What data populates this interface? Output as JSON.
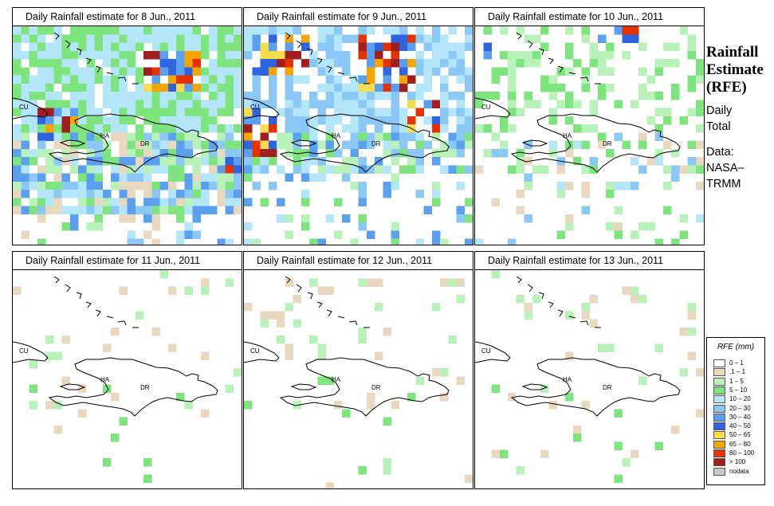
{
  "panels": [
    {
      "id": "p1",
      "title": "Daily Rainfall estimate for  8 Jun., 2011",
      "col": 0,
      "row": 0,
      "seed": 11,
      "coverage": 0.88,
      "base": [
        [
          3,
          4
        ],
        [
          1,
          6
        ]
      ],
      "hot": [
        [
          155,
          30,
          75,
          45,
          1.0
        ],
        [
          30,
          100,
          45,
          40,
          0.8
        ],
        [
          265,
          155,
          25,
          25,
          1.0
        ]
      ],
      "south": 230
    },
    {
      "id": "p2",
      "title": "Daily Rainfall estimate for  9 Jun., 2011",
      "col": 1,
      "row": 0,
      "seed": 22,
      "coverage": 0.72,
      "base": [
        [
          4,
          5
        ],
        [
          2,
          6
        ]
      ],
      "hot": [
        [
          10,
          10,
          70,
          50,
          1.0
        ],
        [
          140,
          10,
          70,
          70,
          1.0
        ],
        [
          0,
          100,
          40,
          60,
          0.9
        ],
        [
          200,
          90,
          45,
          40,
          0.9
        ]
      ],
      "south": 175
    },
    {
      "id": "p3",
      "title": "Daily Rainfall estimate for  10 Jun., 2011",
      "col": 2,
      "row": 0,
      "seed": 33,
      "coverage": 0.35,
      "base": [
        [
          2,
          3
        ],
        [
          1,
          5
        ]
      ],
      "hot": [
        [
          140,
          0,
          70,
          18,
          1.0
        ],
        [
          0,
          10,
          30,
          30,
          0.7
        ]
      ],
      "south": 200
    },
    {
      "id": "p4",
      "title": "Daily Rainfall estimate for  11 Jun., 2011",
      "col": 0,
      "row": 1,
      "seed": 44,
      "coverage": 0.06,
      "base": [
        [
          1,
          2
        ],
        [
          1,
          3
        ]
      ],
      "hot": [],
      "south": 200
    },
    {
      "id": "p5",
      "title": "Daily Rainfall estimate for  12 Jun., 2011",
      "col": 1,
      "row": 1,
      "seed": 55,
      "coverage": 0.07,
      "base": [
        [
          1,
          2
        ],
        [
          1,
          3
        ]
      ],
      "hot": [],
      "south": 200
    },
    {
      "id": "p6",
      "title": "Daily Rainfall estimate for  13 Jun., 2011",
      "col": 2,
      "row": 1,
      "seed": 66,
      "coverage": 0.06,
      "base": [
        [
          1,
          2
        ],
        [
          1,
          3
        ]
      ],
      "hot": [],
      "south": 250
    }
  ],
  "country_labels": [
    "CU",
    "HA",
    "DR"
  ],
  "sidebar": {
    "title_lines": [
      "Rainfall",
      "Estimate",
      "(RFE)"
    ],
    "daily_lines": [
      "Daily",
      "Total"
    ],
    "data_lines": [
      "Data:",
      "NASA–",
      "TRMM"
    ]
  },
  "legend": {
    "title": "RFE (mm)",
    "items": [
      {
        "label": "0 – 1",
        "color": "#ffffff"
      },
      {
        "label": ".1 – 1",
        "color": "#e8d8c0"
      },
      {
        "label": "1 – 5",
        "color": "#b8f2b8"
      },
      {
        "label": "5 – 10",
        "color": "#7ee57e"
      },
      {
        "label": "10 – 20",
        "color": "#b4e6fa"
      },
      {
        "label": "20 – 30",
        "color": "#8cc8f5"
      },
      {
        "label": "30 – 40",
        "color": "#5aa0ee"
      },
      {
        "label": "40 – 50",
        "color": "#2e64e0"
      },
      {
        "label": "50 – 65",
        "color": "#f5dc50"
      },
      {
        "label": "65 – 80",
        "color": "#f5a500"
      },
      {
        "label": "80 – 100",
        "color": "#e63200"
      },
      {
        "label": "> 100",
        "color": "#a01e1e"
      },
      {
        "label": "nodata",
        "color": "#c8c8c8"
      }
    ]
  }
}
